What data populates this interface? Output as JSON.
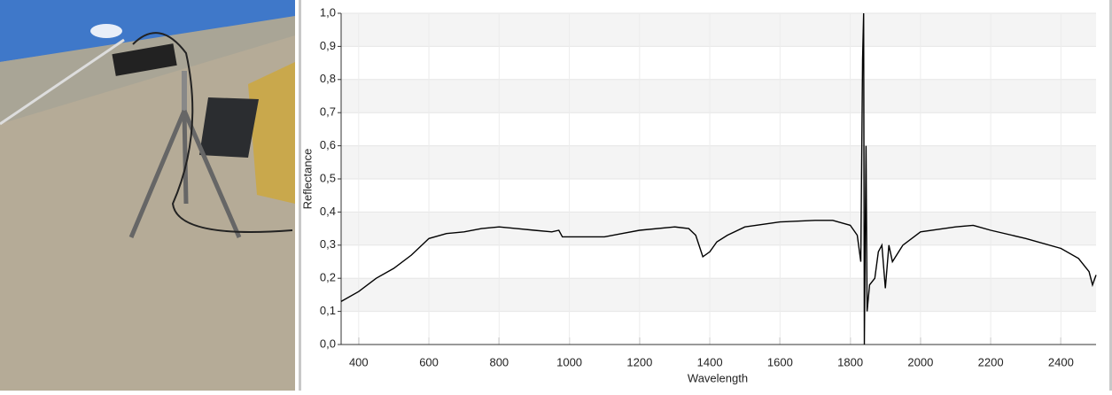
{
  "chart_data": {
    "type": "line",
    "x_label": "Wavelength",
    "y_label": "Reflectance",
    "x": [
      350,
      400,
      450,
      500,
      550,
      600,
      650,
      700,
      750,
      800,
      850,
      900,
      950,
      970,
      980,
      1000,
      1100,
      1150,
      1200,
      1300,
      1340,
      1360,
      1380,
      1400,
      1420,
      1450,
      1500,
      1600,
      1700,
      1750,
      1800,
      1820,
      1830,
      1835,
      1838,
      1840,
      1845,
      1848,
      1855,
      1870,
      1880,
      1890,
      1900,
      1910,
      1920,
      1950,
      2000,
      2100,
      2150,
      2200,
      2300,
      2400,
      2450,
      2480,
      2490,
      2500
    ],
    "series": [
      {
        "name": "Reflectance",
        "color": "#000000",
        "values": [
          0.13,
          0.16,
          0.2,
          0.23,
          0.27,
          0.32,
          0.335,
          0.34,
          0.35,
          0.355,
          0.35,
          0.345,
          0.34,
          0.345,
          0.325,
          0.325,
          0.325,
          0.335,
          0.345,
          0.355,
          0.35,
          0.33,
          0.265,
          0.28,
          0.31,
          0.33,
          0.355,
          0.37,
          0.375,
          0.375,
          0.36,
          0.33,
          0.25,
          0.86,
          1.0,
          0.0,
          0.6,
          0.1,
          0.18,
          0.2,
          0.28,
          0.3,
          0.17,
          0.3,
          0.25,
          0.3,
          0.34,
          0.355,
          0.36,
          0.345,
          0.32,
          0.29,
          0.26,
          0.22,
          0.18,
          0.21
        ]
      }
    ],
    "xlim": [
      350,
      2500
    ],
    "xticks": [
      400,
      600,
      800,
      1000,
      1200,
      1400,
      1600,
      1800,
      2000,
      2200,
      2400
    ],
    "ylim": [
      0,
      1
    ],
    "yticks": [
      {
        "value": 0,
        "label": "0,0"
      },
      {
        "value": 0.1,
        "label": "0,1"
      },
      {
        "value": 0.2,
        "label": "0,2"
      },
      {
        "value": 0.3,
        "label": "0,3"
      },
      {
        "value": 0.4,
        "label": "0,4"
      },
      {
        "value": 0.5,
        "label": "0,5"
      },
      {
        "value": 0.6,
        "label": "0,6"
      },
      {
        "value": 0.7,
        "label": "0,7"
      },
      {
        "value": 0.8,
        "label": "0,8"
      },
      {
        "value": 0.9,
        "label": "0,9"
      },
      {
        "value": 1,
        "label": "1,0"
      }
    ],
    "grid": true
  }
}
